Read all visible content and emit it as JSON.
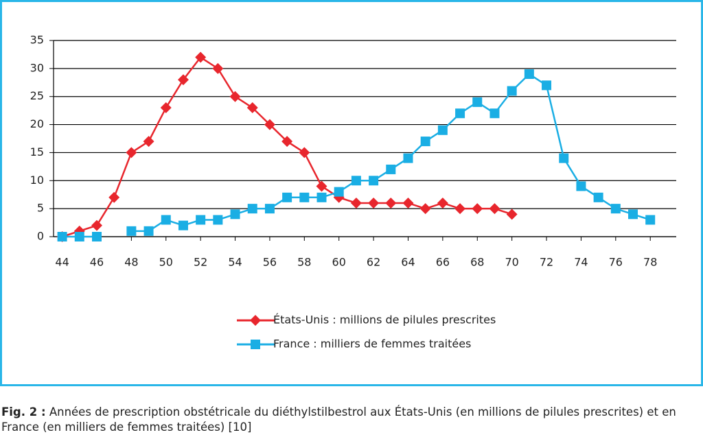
{
  "chart_data": {
    "type": "line",
    "x": [
      44,
      45,
      46,
      47,
      48,
      49,
      50,
      51,
      52,
      53,
      54,
      55,
      56,
      57,
      58,
      59,
      60,
      61,
      62,
      63,
      64,
      65,
      66,
      67,
      68,
      69,
      70,
      71,
      72,
      73,
      74,
      75,
      76,
      77,
      78
    ],
    "xlim": [
      43.5,
      79.5
    ],
    "xticks": [
      44,
      46,
      48,
      50,
      52,
      54,
      56,
      58,
      60,
      62,
      64,
      66,
      68,
      70,
      72,
      74,
      76,
      78
    ],
    "ylim": [
      0,
      35
    ],
    "yticks": [
      0,
      5,
      10,
      15,
      20,
      25,
      30,
      35
    ],
    "grid": true,
    "series": [
      {
        "name": "États-Unis : millions de pilules prescrites",
        "color": "#e8262d",
        "marker": "diamond",
        "values": [
          0,
          1,
          2,
          7,
          15,
          17,
          23,
          28,
          32,
          30,
          25,
          23,
          20,
          17,
          15,
          9,
          7,
          6,
          6,
          6,
          6,
          5,
          6,
          5,
          5,
          5,
          4,
          null,
          null,
          null,
          null,
          null,
          null,
          null,
          null
        ]
      },
      {
        "name": "France : milliers de femmes traitées",
        "color": "#1aaee4",
        "marker": "square",
        "values": [
          0,
          0,
          0,
          null,
          1,
          1,
          3,
          2,
          3,
          3,
          4,
          5,
          5,
          7,
          7,
          7,
          8,
          10,
          10,
          12,
          14,
          17,
          19,
          22,
          24,
          22,
          26,
          29,
          27,
          14,
          9,
          7,
          5,
          4,
          3
        ]
      }
    ]
  },
  "caption": {
    "label": "Fig. 2 :",
    "text": "Années de prescription obstétricale du diéthylstilbestrol aux États-Unis (en millions de pilules prescrites) et en France (en milliers de femmes traitées) [10]"
  }
}
